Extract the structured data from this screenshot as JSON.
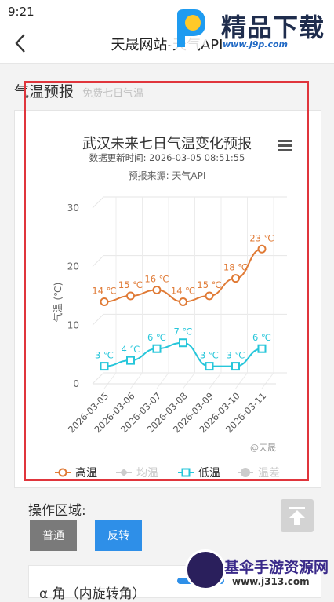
{
  "status_bar": {
    "time": "9:21"
  },
  "app_bar": {
    "title": "天晟网站-天气API"
  },
  "watermark_top": {
    "brand": "精品下载",
    "url": "www.j9p.com"
  },
  "section": {
    "title": "气温预报",
    "subtitle": "免费七日气温"
  },
  "chart_data": {
    "type": "line",
    "title": "武汉未来七日气温变化预报",
    "subtitle_update": "数据更新时间: 2026-03-05 08:51:55",
    "subtitle_source": "预报来源: 天气API",
    "ylabel": "气温 (℃)",
    "ylim": [
      0,
      30
    ],
    "yticks": [
      "0",
      "10",
      "20",
      "30"
    ],
    "categories": [
      "2026-03-05",
      "2026-03-06",
      "2026-03-07",
      "2026-03-08",
      "2026-03-09",
      "2026-03-10",
      "2026-03-11"
    ],
    "series": [
      {
        "name": "高温",
        "color": "#e07a35",
        "values": [
          14,
          15,
          16,
          14,
          15,
          18,
          23
        ],
        "labels": [
          "14 ℃",
          "15 ℃",
          "16 ℃",
          "14 ℃",
          "15 ℃",
          "18 ℃",
          "23 ℃"
        ],
        "marker": "circle",
        "visible": true
      },
      {
        "name": "均温",
        "color": "#cccccc",
        "marker": "diamond",
        "visible": false
      },
      {
        "name": "低温",
        "color": "#26c6da",
        "values": [
          3,
          4,
          6,
          7,
          3,
          3,
          6
        ],
        "labels": [
          "3 ℃",
          "4 ℃",
          "6 ℃",
          "7 ℃",
          "3 ℃",
          "3 ℃",
          "6 ℃"
        ],
        "marker": "square",
        "visible": true
      },
      {
        "name": "温差",
        "color": "#cccccc",
        "marker": "circle-filled",
        "visible": false
      }
    ],
    "credit": "@天晟",
    "grid": true,
    "legend_position": "bottom"
  },
  "operations": {
    "label": "操作区域:",
    "normal_button": "普通",
    "reverse_button": "反转"
  },
  "bottom": {
    "text": "α 角（内旋转角）"
  },
  "watermark_bottom": {
    "name": "基伞手游资源网",
    "url": "www.j313.com"
  }
}
